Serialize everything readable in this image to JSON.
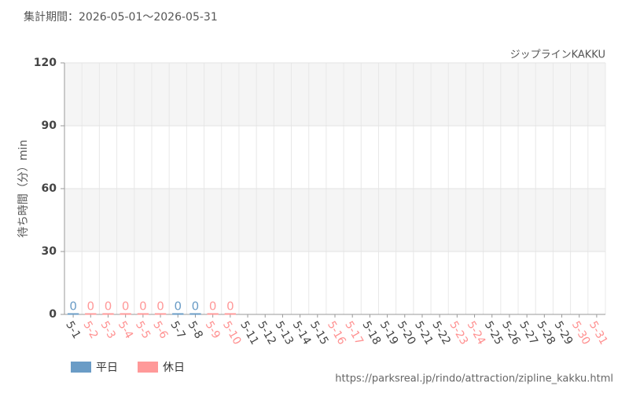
{
  "chart_data": {
    "type": "bar",
    "title": "集計期間：2026-05-01～2026-05-31",
    "subtitle": "ジップラインKAKKU",
    "y_label": "待ち時間（分）min",
    "source": "https://parksreal.jp/rindo/attraction/zipline_kakku.html",
    "categories": [
      "5-1",
      "5-2",
      "5-3",
      "5-4",
      "5-5",
      "5-6",
      "5-7",
      "5-8",
      "5-9",
      "5-10",
      "5-11",
      "5-12",
      "5-13",
      "5-14",
      "5-15",
      "5-16",
      "5-17",
      "5-18",
      "5-19",
      "5-20",
      "5-21",
      "5-22",
      "5-23",
      "5-24",
      "5-25",
      "5-26",
      "5-27",
      "5-28",
      "5-29",
      "5-30",
      "5-31"
    ],
    "category_colors": [
      "#444",
      "#ff9090",
      "#ff9090",
      "#ff9090",
      "#ff9090",
      "#ff9090",
      "#444",
      "#444",
      "#ff9090",
      "#ff9090",
      "#444",
      "#444",
      "#444",
      "#444",
      "#444",
      "#ff9090",
      "#ff9090",
      "#444",
      "#444",
      "#444",
      "#444",
      "#444",
      "#ff9090",
      "#ff9090",
      "#444",
      "#444",
      "#444",
      "#444",
      "#444",
      "#ff9090",
      "#ff9090"
    ],
    "series": [
      {
        "name": "平日",
        "color": "#6a9cc6",
        "values": [
          0,
          null,
          null,
          null,
          null,
          null,
          0,
          0,
          null,
          null,
          null,
          null,
          null,
          null,
          null,
          null,
          null,
          null,
          null,
          null,
          null,
          null,
          null,
          null,
          null,
          null,
          null,
          null,
          null,
          null,
          null
        ]
      },
      {
        "name": "休日",
        "color": "#ff9999",
        "values": [
          null,
          0,
          0,
          0,
          0,
          0,
          null,
          null,
          0,
          0,
          null,
          null,
          null,
          null,
          null,
          null,
          null,
          null,
          null,
          null,
          null,
          null,
          null,
          null,
          null,
          null,
          null,
          null,
          null,
          null,
          null
        ]
      }
    ],
    "ylim": [
      0,
      120
    ],
    "yticks": [
      0,
      30,
      60,
      90,
      120
    ],
    "grid": true
  }
}
